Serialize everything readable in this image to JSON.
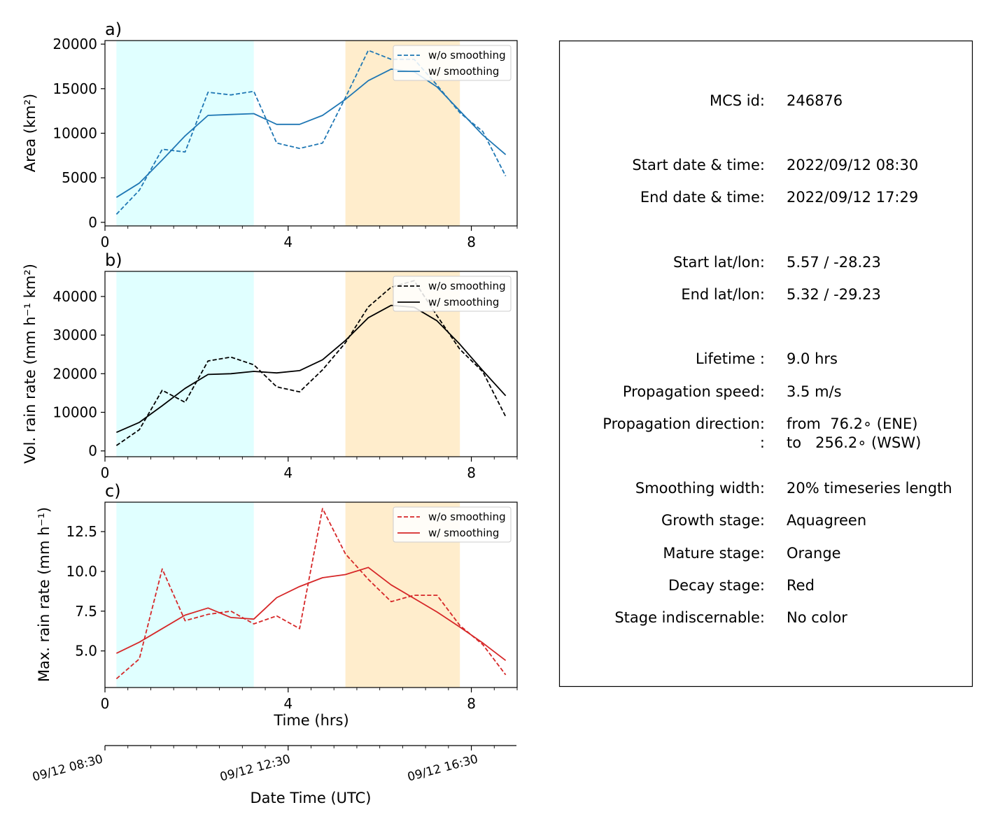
{
  "colors": {
    "growth_shade": "#e0ffff",
    "mature_shade": "#ffedcc",
    "area": "#1f77b4",
    "volume": "#000000",
    "maxrain": "#d62728"
  },
  "chart_data": [
    {
      "type": "line",
      "panel": "a)",
      "ylabel": "Area  (km²)",
      "ylim": [
        -400,
        20400
      ],
      "yticks": [
        0,
        5000,
        10000,
        15000,
        20000
      ],
      "ytick_labels": [
        "0",
        "5000",
        "10000",
        "15000",
        "20000"
      ],
      "xlim": [
        0,
        9
      ],
      "xticks": [
        0,
        4,
        8
      ],
      "xtick_labels": [
        "0",
        "4",
        "8"
      ],
      "legend": "top-right",
      "stages": {
        "growth": [
          0.25,
          3.25
        ],
        "mature": [
          5.25,
          7.75
        ]
      },
      "x": [
        0.25,
        0.75,
        1.25,
        1.75,
        2.25,
        2.75,
        3.25,
        3.75,
        4.25,
        4.75,
        5.25,
        5.75,
        6.25,
        6.75,
        7.25,
        7.75,
        8.25,
        8.75
      ],
      "series": [
        {
          "name": "w/o smoothing",
          "style": "dashed",
          "values": [
            900,
            3600,
            8200,
            7900,
            14600,
            14300,
            14700,
            8900,
            8300,
            8900,
            14000,
            19300,
            18300,
            18300,
            15400,
            12300,
            10200,
            5200
          ]
        },
        {
          "name": "w/ smoothing",
          "style": "solid",
          "values": [
            2800,
            4400,
            7000,
            9700,
            12000,
            12100,
            12200,
            11000,
            11000,
            12000,
            13800,
            15900,
            17200,
            16900,
            15200,
            12500,
            9800,
            7600
          ]
        }
      ]
    },
    {
      "type": "line",
      "panel": "b)",
      "ylabel": "Vol. rain rate (mm h⁻¹ km²)",
      "ylim": [
        -1500,
        46500
      ],
      "yticks": [
        0,
        10000,
        20000,
        30000,
        40000
      ],
      "ytick_labels": [
        "0",
        "10000",
        "20000",
        "30000",
        "40000"
      ],
      "xlim": [
        0,
        9
      ],
      "xticks": [
        0,
        4,
        8
      ],
      "xtick_labels": [
        "0",
        "4",
        "8"
      ],
      "legend": "top-right",
      "stages": {
        "growth": [
          0.25,
          3.25
        ],
        "mature": [
          5.25,
          7.75
        ]
      },
      "x": [
        0.25,
        0.75,
        1.25,
        1.75,
        2.25,
        2.75,
        3.25,
        3.75,
        4.25,
        4.75,
        5.25,
        5.75,
        6.25,
        6.75,
        7.25,
        7.75,
        8.25,
        8.75
      ],
      "series": [
        {
          "name": "w/o smoothing",
          "style": "dashed",
          "values": [
            1400,
            5500,
            15700,
            12600,
            23300,
            24300,
            22300,
            16600,
            15300,
            21000,
            28000,
            37300,
            42400,
            44100,
            35000,
            26300,
            20500,
            8900
          ]
        },
        {
          "name": "w/ smoothing",
          "style": "solid",
          "values": [
            4800,
            7400,
            11700,
            16200,
            19800,
            20000,
            20600,
            20200,
            20800,
            23600,
            28600,
            34500,
            37700,
            37200,
            33700,
            27600,
            20800,
            14300
          ]
        }
      ]
    },
    {
      "type": "line",
      "panel": "c)",
      "ylabel": "Max. rain rate  (mm h⁻¹)",
      "ylim": [
        2.7,
        14.35
      ],
      "yticks": [
        5.0,
        7.5,
        10.0,
        12.5
      ],
      "ytick_labels": [
        "5.0",
        "7.5",
        "10.0",
        "12.5"
      ],
      "xlim": [
        0,
        9
      ],
      "xticks": [
        0,
        4,
        8
      ],
      "xtick_labels": [
        "0",
        "4",
        "8"
      ],
      "xlabel": "Time (hrs)",
      "legend": "top-right",
      "stages": {
        "growth": [
          0.25,
          3.25
        ],
        "mature": [
          5.25,
          7.75
        ]
      },
      "x": [
        0.25,
        0.75,
        1.25,
        1.75,
        2.25,
        2.75,
        3.25,
        3.75,
        4.25,
        4.75,
        5.25,
        5.75,
        6.25,
        6.75,
        7.25,
        7.75,
        8.25,
        8.75
      ],
      "series": [
        {
          "name": "w/o smoothing",
          "style": "dashed",
          "values": [
            3.25,
            4.5,
            10.15,
            6.9,
            7.3,
            7.5,
            6.7,
            7.2,
            6.4,
            13.95,
            11.1,
            9.5,
            8.1,
            8.5,
            8.5,
            6.6,
            5.4,
            3.5
          ]
        },
        {
          "name": "w/ smoothing",
          "style": "solid",
          "values": [
            4.85,
            5.55,
            6.4,
            7.25,
            7.7,
            7.1,
            7.0,
            8.35,
            9.05,
            9.6,
            9.8,
            10.25,
            9.15,
            8.3,
            7.45,
            6.5,
            5.5,
            4.4
          ]
        }
      ]
    }
  ],
  "date_axis": {
    "xlabel": "Date Time (UTC)",
    "tick_labels": [
      "09/12 08:30",
      "09/12 12:30",
      "09/12 16:30"
    ]
  },
  "info": {
    "mcs_id": {
      "key": "MCS id:",
      "value": "246876"
    },
    "start_datetime": {
      "key": "Start date & time:",
      "value": "2022/09/12 08:30"
    },
    "end_datetime": {
      "key": "End date & time:",
      "value": "2022/09/12 17:29"
    },
    "start_latlon": {
      "key": "Start lat/lon:",
      "value": "5.57 / -28.23"
    },
    "end_latlon": {
      "key": "End lat/lon:",
      "value": "5.32 / -29.23"
    },
    "lifetime": {
      "key": "Lifetime :",
      "value": "9.0 hrs"
    },
    "speed": {
      "key": "Propagation speed:",
      "value": "3.5 m/s"
    },
    "direction": {
      "key": "Propagation direction:",
      "value": "from  76.2∘ (ENE)"
    },
    "direction_to": {
      "key": ":",
      "value": "to   256.2∘ (WSW)"
    },
    "smoothing": {
      "key": "Smoothing width:",
      "value": "20% timeseries length"
    },
    "growth": {
      "key": "Growth stage:",
      "value": "Aquagreen"
    },
    "mature": {
      "key": "Mature stage:",
      "value": "Orange"
    },
    "decay": {
      "key": "Decay stage:",
      "value": "Red"
    },
    "indiscernable": {
      "key": "Stage indiscernable:",
      "value": "No color"
    }
  }
}
